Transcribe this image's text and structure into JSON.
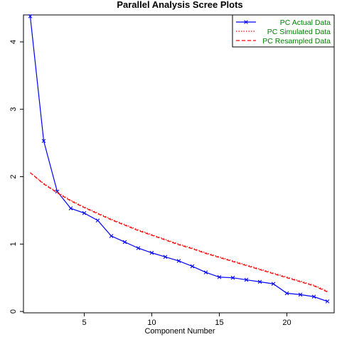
{
  "chart_data": {
    "type": "line",
    "title": "Parallel Analysis Scree Plots",
    "xlabel": "Component Number",
    "ylabel": "",
    "xlim": [
      0.5,
      23.5
    ],
    "ylim": [
      -0.02,
      4.4
    ],
    "x_ticks": [
      5,
      10,
      15,
      20
    ],
    "y_ticks": [
      0,
      1,
      2,
      3,
      4
    ],
    "grid": false,
    "legend_position": "top-right",
    "legend": [
      {
        "label": "PC  Actual Data",
        "color": "#0000ff",
        "style": "solid-x"
      },
      {
        "label": "PC  Simulated Data",
        "color": "#ff0000",
        "style": "dotted"
      },
      {
        "label": "PC  Resampled Data",
        "color": "#ff0000",
        "style": "dashed"
      }
    ],
    "series": [
      {
        "name": "PC  Actual Data",
        "color": "#0000ff",
        "line": "solid",
        "marker": "x",
        "x": [
          1,
          2,
          3,
          4,
          5,
          6,
          7,
          8,
          9,
          10,
          11,
          12,
          13,
          14,
          15,
          16,
          17,
          18,
          19,
          20,
          21,
          22,
          23
        ],
        "y": [
          4.38,
          2.53,
          1.78,
          1.53,
          1.46,
          1.35,
          1.12,
          1.03,
          0.94,
          0.87,
          0.81,
          0.75,
          0.67,
          0.58,
          0.51,
          0.5,
          0.47,
          0.44,
          0.41,
          0.27,
          0.25,
          0.22,
          0.15
        ]
      },
      {
        "name": "PC  Simulated Data",
        "color": "#ff0000",
        "line": "dotted",
        "x": [
          1,
          2,
          3,
          4,
          5,
          6,
          7,
          8,
          9,
          10,
          11,
          12,
          13,
          14,
          15,
          16,
          17,
          18,
          19,
          20,
          21,
          22,
          23
        ],
        "y": [
          2.06,
          1.9,
          1.77,
          1.65,
          1.55,
          1.46,
          1.37,
          1.29,
          1.21,
          1.14,
          1.07,
          1.0,
          0.94,
          0.87,
          0.81,
          0.75,
          0.69,
          0.63,
          0.57,
          0.51,
          0.45,
          0.39,
          0.3
        ]
      },
      {
        "name": "PC  Resampled Data",
        "color": "#ff0000",
        "line": "dashed",
        "x": [
          1,
          2,
          3,
          4,
          5,
          6,
          7,
          8,
          9,
          10,
          11,
          12,
          13,
          14,
          15,
          16,
          17,
          18,
          19,
          20,
          21,
          22,
          23
        ],
        "y": [
          2.06,
          1.89,
          1.76,
          1.64,
          1.54,
          1.45,
          1.36,
          1.28,
          1.2,
          1.13,
          1.06,
          0.99,
          0.93,
          0.86,
          0.8,
          0.74,
          0.68,
          0.62,
          0.56,
          0.5,
          0.44,
          0.38,
          0.29
        ]
      }
    ]
  }
}
